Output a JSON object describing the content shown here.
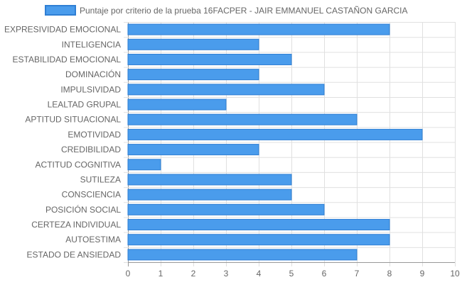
{
  "chart_data": {
    "type": "bar",
    "orientation": "horizontal",
    "categories": [
      "EXPRESIVIDAD EMOCIONAL",
      "INTELIGENCIA",
      "ESTABILIDAD EMOCIONAL",
      "DOMINACIÓN",
      "IMPULSIVIDAD",
      "LEALTAD GRUPAL",
      "APTITUD SITUACIONAL",
      "EMOTIVIDAD",
      "CREDIBILIDAD",
      "ACTITUD COGNITIVA",
      "SUTILEZA",
      "CONSCIENCIA",
      "POSICIÓN SOCIAL",
      "CERTEZA INDIVIDUAL",
      "AUTOESTIMA",
      "ESTADO DE ANSIEDAD"
    ],
    "series": [
      {
        "name": "Puntaje por criterio de la prueba 16FACPER - JAIR EMMANUEL CASTAÑON GARCIA",
        "values": [
          8,
          4,
          5,
          4,
          6,
          3,
          7,
          9,
          4,
          1,
          5,
          5,
          6,
          8,
          8,
          7
        ]
      }
    ],
    "xlim": [
      0,
      10
    ],
    "x_ticks": [
      "0",
      "1",
      "2",
      "3",
      "4",
      "5",
      "6",
      "7",
      "8",
      "9",
      "10"
    ],
    "grid": true,
    "legend_position": "top",
    "colors": {
      "bar_fill": "#4a9cec",
      "bar_stroke": "#2f7fd4",
      "grid": "#e0e0e0",
      "axis": "#999999",
      "text": "#666666"
    }
  }
}
